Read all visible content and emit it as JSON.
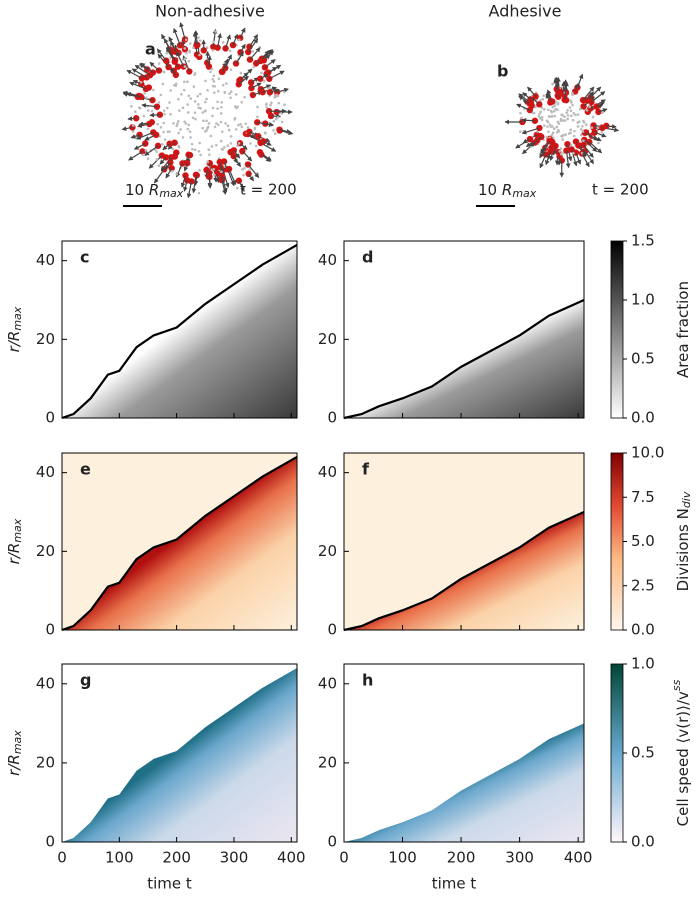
{
  "column_titles": [
    "Non-adhesive",
    "Adhesive"
  ],
  "snapshots": [
    {
      "label": "a",
      "scale_number": "10",
      "scale_symbol": "R",
      "scale_subscript": "max",
      "time": "t = 200"
    },
    {
      "label": "b",
      "scale_number": "10",
      "scale_symbol": "R",
      "scale_subscript": "max",
      "time": "t = 200"
    }
  ],
  "chart_data": [
    {
      "type": "heatmap",
      "panel": "c",
      "colormap": "gray",
      "xlim": [
        0,
        410
      ],
      "ylim": [
        0,
        45
      ],
      "xticks": [
        0,
        100,
        200,
        300,
        400
      ],
      "yticks": [
        0,
        20,
        40
      ],
      "ylabel": "r/R",
      "ylabel_subscript": "max",
      "front": {
        "x": [
          0,
          20,
          50,
          80,
          100,
          130,
          160,
          200,
          250,
          300,
          350,
          410
        ],
        "y": [
          0,
          1,
          5,
          11,
          12,
          18,
          21,
          23,
          29,
          34,
          39,
          44
        ]
      }
    },
    {
      "type": "heatmap",
      "panel": "d",
      "colormap": "gray",
      "xlim": [
        0,
        410
      ],
      "ylim": [
        0,
        45
      ],
      "xticks": [
        0,
        100,
        200,
        300,
        400
      ],
      "yticks": [
        0,
        20,
        40
      ],
      "front": {
        "x": [
          0,
          30,
          60,
          100,
          150,
          200,
          250,
          300,
          350,
          410
        ],
        "y": [
          0,
          1,
          3,
          5,
          8,
          13,
          17,
          21,
          26,
          30
        ]
      }
    },
    {
      "type": "heatmap",
      "panel": "e",
      "colormap": "orange",
      "xlim": [
        0,
        410
      ],
      "ylim": [
        0,
        45
      ],
      "xticks": [
        0,
        100,
        200,
        300,
        400
      ],
      "yticks": [
        0,
        20,
        40
      ],
      "ylabel": "r/R",
      "ylabel_subscript": "max",
      "front": {
        "x": [
          0,
          20,
          50,
          80,
          100,
          130,
          160,
          200,
          250,
          300,
          350,
          410
        ],
        "y": [
          0,
          1,
          5,
          11,
          12,
          18,
          21,
          23,
          29,
          34,
          39,
          44
        ]
      }
    },
    {
      "type": "heatmap",
      "panel": "f",
      "colormap": "orange",
      "xlim": [
        0,
        410
      ],
      "ylim": [
        0,
        45
      ],
      "xticks": [
        0,
        100,
        200,
        300,
        400
      ],
      "yticks": [
        0,
        20,
        40
      ],
      "front": {
        "x": [
          0,
          30,
          60,
          100,
          150,
          200,
          250,
          300,
          350,
          410
        ],
        "y": [
          0,
          1,
          3,
          5,
          8,
          13,
          17,
          21,
          26,
          30
        ]
      }
    },
    {
      "type": "heatmap",
      "panel": "g",
      "colormap": "blue",
      "xlim": [
        0,
        410
      ],
      "ylim": [
        0,
        45
      ],
      "xticks": [
        0,
        100,
        200,
        300,
        400
      ],
      "yticks": [
        0,
        20,
        40
      ],
      "ylabel": "r/R",
      "ylabel_subscript": "max",
      "xlabel": "time t"
    },
    {
      "type": "heatmap",
      "panel": "h",
      "colormap": "blue",
      "xlim": [
        0,
        410
      ],
      "ylim": [
        0,
        45
      ],
      "xticks": [
        0,
        100,
        200,
        300,
        400
      ],
      "yticks": [
        0,
        20,
        40
      ],
      "xlabel": "time t"
    }
  ],
  "colorbars": [
    {
      "label": "Area fraction",
      "colormap": "gray",
      "lim": [
        0,
        1.5
      ],
      "ticks": [
        {
          "value": 0,
          "label": "0.0"
        },
        0.5,
        {
          "value": 1,
          "label": "1.0"
        },
        1.5
      ]
    },
    {
      "label": "Divisions N",
      "label_subscript": "div",
      "colormap": "orange",
      "lim": [
        0,
        10
      ],
      "ticks": [
        {
          "value": 0,
          "label": "0.0"
        },
        2.5,
        {
          "value": 5,
          "label": "5.0"
        },
        7.5,
        {
          "value": 10,
          "label": "10.0"
        }
      ]
    },
    {
      "label": "Cell speed ⟨v(r)⟩/v",
      "label_superscript": "ss",
      "colormap": "blue",
      "lim": [
        0,
        1
      ],
      "ticks": [
        {
          "value": 0,
          "label": "0.0"
        },
        0.5,
        {
          "value": 1,
          "label": "1.0"
        }
      ]
    }
  ]
}
